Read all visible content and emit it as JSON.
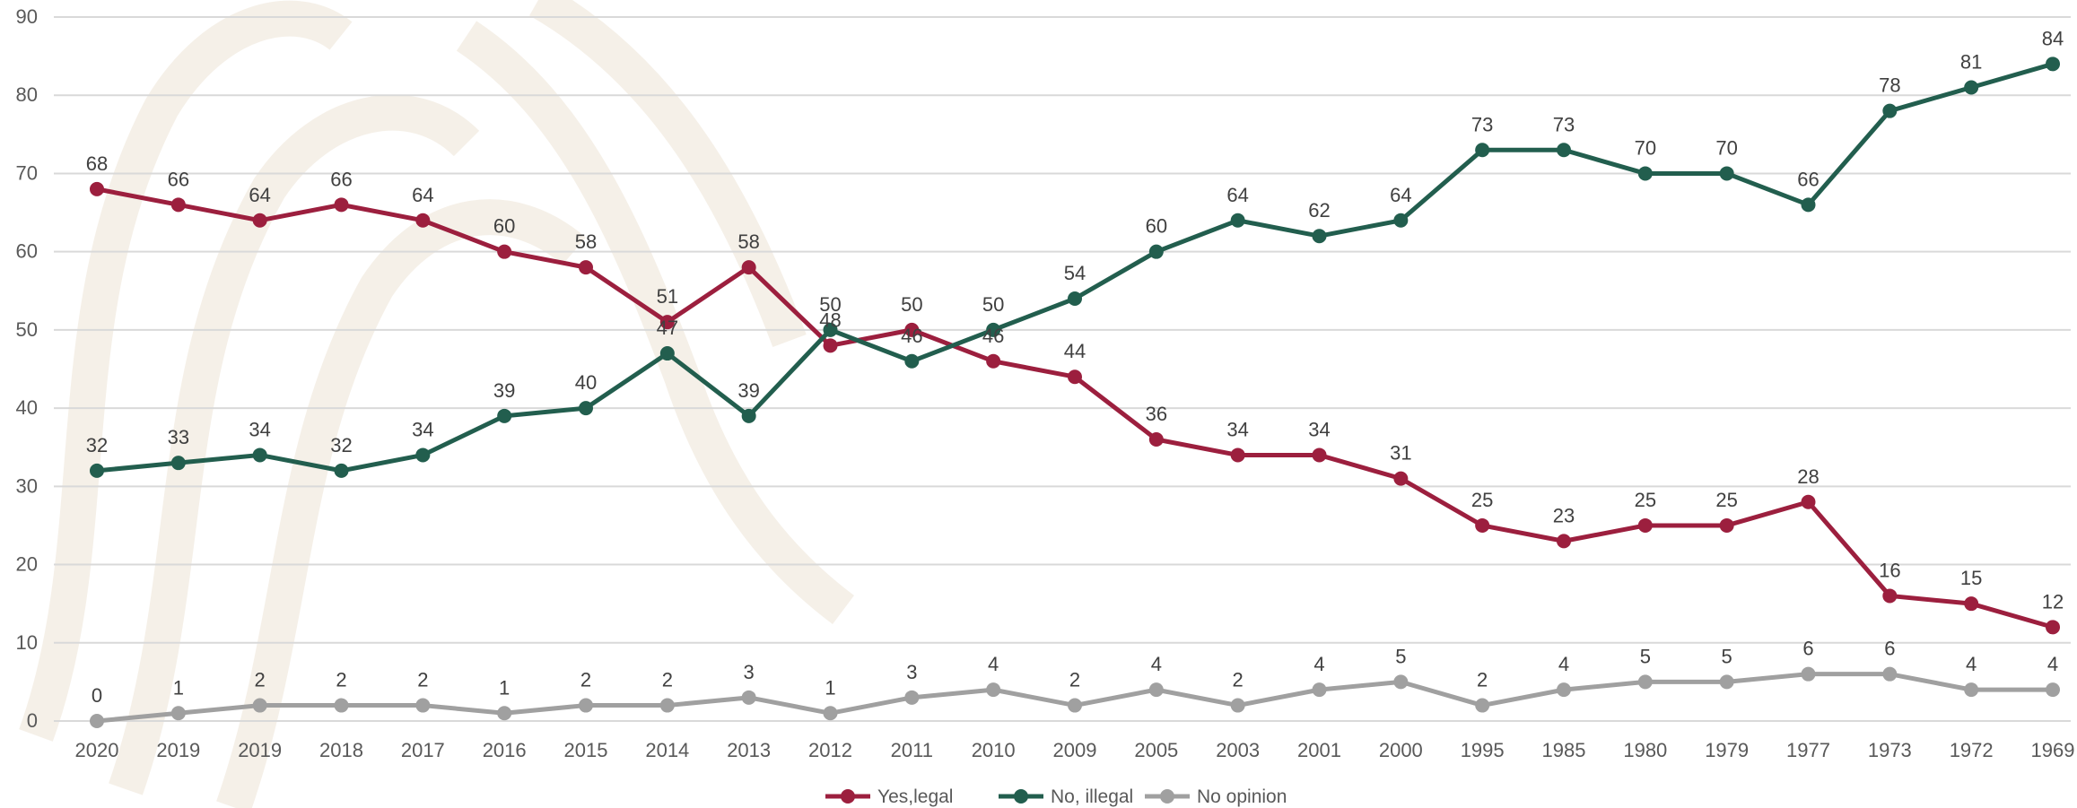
{
  "chart_data": {
    "type": "line",
    "categories": [
      "2020",
      "2019",
      "2019",
      "2018",
      "2017",
      "2016",
      "2015",
      "2014",
      "2013",
      "2012",
      "2011",
      "2010",
      "2009",
      "2005",
      "2003",
      "2001",
      "2000",
      "1995",
      "1985",
      "1980",
      "1979",
      "1977",
      "1973",
      "1972",
      "1969"
    ],
    "ylim": [
      0,
      90
    ],
    "yticks": [
      "0",
      "10",
      "20",
      "30",
      "40",
      "50",
      "60",
      "70",
      "80",
      "90"
    ],
    "grid": true,
    "legend_position": "bottom",
    "series": [
      {
        "name": "Yes,legal",
        "color": "#9c1f3e",
        "values": [
          68,
          66,
          64,
          66,
          64,
          60,
          58,
          51,
          58,
          48,
          50,
          46,
          44,
          36,
          34,
          34,
          31,
          25,
          23,
          25,
          25,
          28,
          16,
          15,
          12
        ]
      },
      {
        "name": "No, illegal",
        "color": "#225e4e",
        "values": [
          32,
          33,
          34,
          32,
          34,
          39,
          40,
          47,
          39,
          50,
          46,
          50,
          54,
          60,
          64,
          62,
          64,
          73,
          73,
          70,
          70,
          66,
          78,
          81,
          84
        ]
      },
      {
        "name": "No opinion",
        "color": "#a0a0a0",
        "values": [
          0,
          1,
          2,
          2,
          2,
          1,
          2,
          2,
          3,
          1,
          3,
          4,
          2,
          4,
          2,
          4,
          5,
          2,
          4,
          5,
          5,
          6,
          6,
          4,
          4
        ]
      }
    ]
  }
}
